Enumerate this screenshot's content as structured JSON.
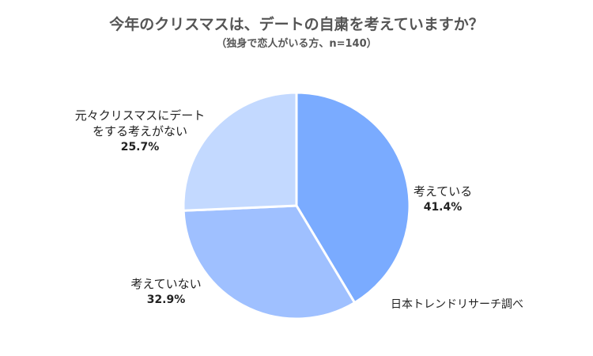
{
  "chart_data": {
    "type": "pie",
    "title": "今年のクリスマスは、デートの自粛を考えていますか？",
    "subtitle": "（独身で恋人がいる方、n=140）",
    "slices": [
      {
        "label_lines": [
          "考えている"
        ],
        "value": 41.4,
        "value_label": "41.4%",
        "color": "#7aabff"
      },
      {
        "label_lines": [
          "考えていない"
        ],
        "value": 32.9,
        "value_label": "32.9%",
        "color": "#9fc0ff"
      },
      {
        "label_lines": [
          "元々クリスマスにデート",
          "をする考えがない"
        ],
        "value": 25.7,
        "value_label": "25.7%",
        "color": "#c3d9ff"
      }
    ],
    "start_angle_deg": 0,
    "direction": "clockwise",
    "legend": "none"
  },
  "source": "日本トレンドリサーチ調べ"
}
